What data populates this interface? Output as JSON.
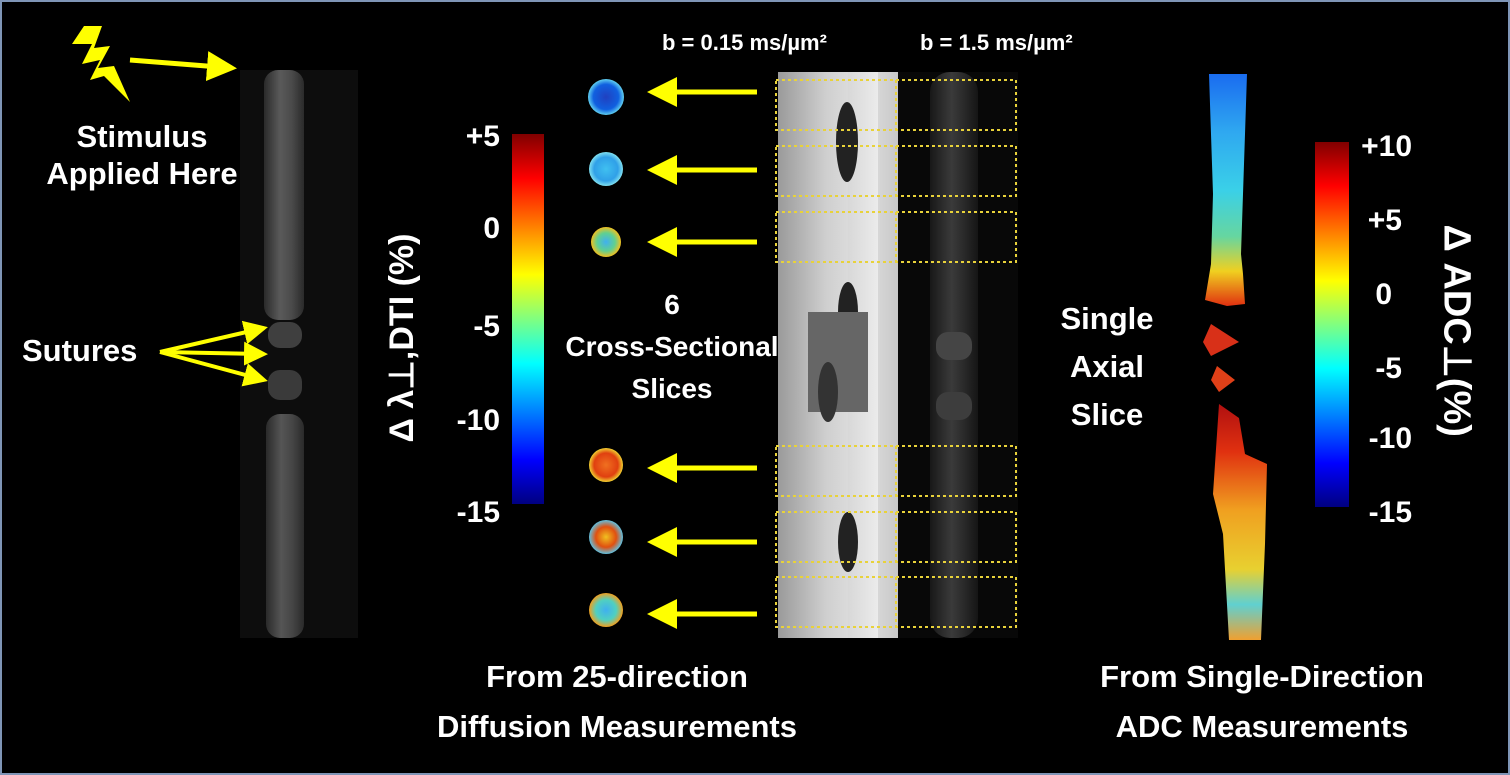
{
  "labels": {
    "stimulus": "Stimulus Applied Here",
    "sutures": "Sutures",
    "b_low": "b = 0.15 ms/µm²",
    "b_high": "b = 1.5 ms/µm²",
    "six": "6",
    "cross_sectional": "Cross-Sectional",
    "slices": "Slices",
    "single": "Single",
    "axial": "Axial",
    "slice": "Slice",
    "left_caption_1": "From 25-direction",
    "left_caption_2": "Diffusion Measurements",
    "right_caption_1": "From Single-Direction",
    "right_caption_2": "ADC Measurements"
  },
  "left_colorbar": {
    "title": "Δ λ⊥,DTI (%)",
    "ticks": [
      "+5",
      "0",
      "-5",
      "-10",
      "-15"
    ]
  },
  "right_colorbar": {
    "title": "Δ ADC⊥(%)",
    "ticks": [
      "+10",
      "+5",
      "0",
      "-5",
      "-10",
      "-15"
    ]
  },
  "colors": {
    "arrow": "#ffff00",
    "dotted_box": "#e8d23a",
    "border": "#7f95b6",
    "background": "#000000"
  },
  "icons": [
    "lightning-icon"
  ]
}
